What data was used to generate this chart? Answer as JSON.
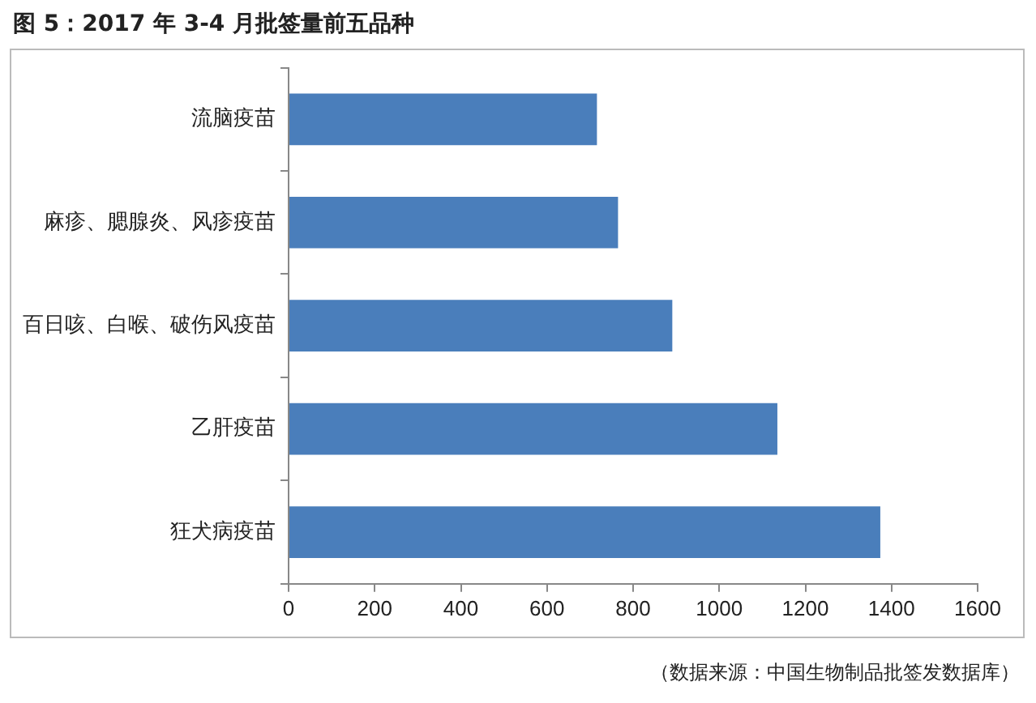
{
  "chart_data": {
    "type": "bar",
    "orientation": "horizontal",
    "title": "图 5：2017 年 3-4 月批签量前五品种",
    "categories": [
      "流脑疫苗",
      "麻疹、腮腺炎、风疹疫苗",
      "百日咳、白喉、破伤风疫苗",
      "乙肝疫苗",
      "狂犬病疫苗"
    ],
    "values": [
      716,
      765,
      891,
      1135,
      1374
    ],
    "color": "#4a7ebb",
    "xlim": [
      0,
      1600
    ],
    "xticks": [
      0,
      200,
      400,
      600,
      800,
      1000,
      1200,
      1400,
      1600
    ],
    "grid": false,
    "annotations": [
      "（数据来源：中国生物制品批签发数据库）"
    ]
  }
}
